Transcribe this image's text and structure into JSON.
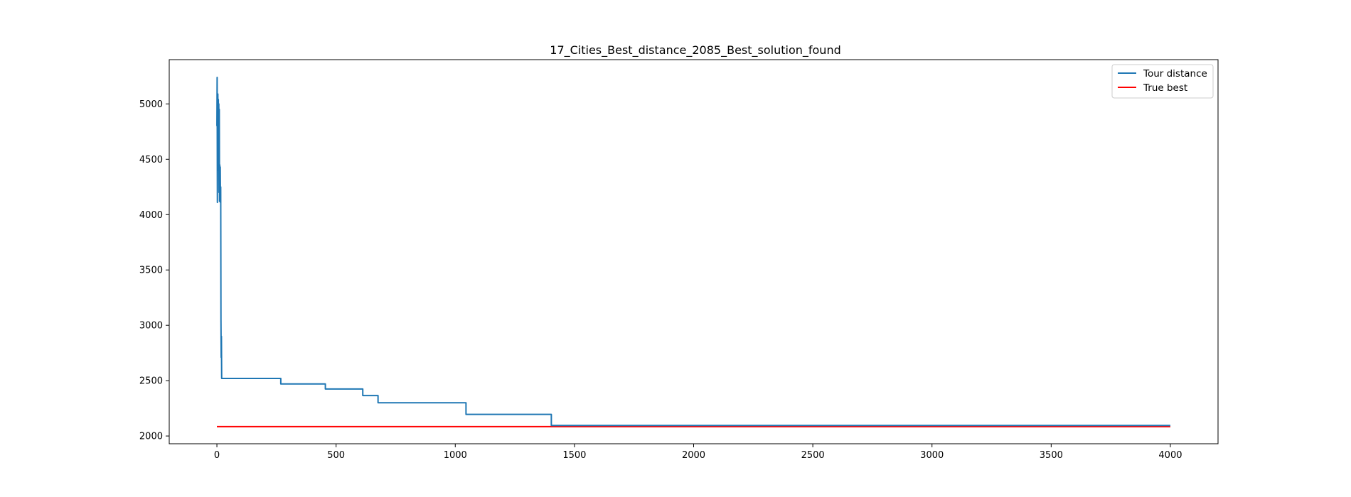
{
  "chart_data": {
    "type": "line",
    "title": "17_Cities_Best_distance_2085_Best_solution_found",
    "xlabel": "",
    "ylabel": "",
    "xlim": [
      -200,
      4200
    ],
    "ylim": [
      1930,
      5400
    ],
    "xticks": [
      0,
      500,
      1000,
      1500,
      2000,
      2500,
      3000,
      3500,
      4000
    ],
    "yticks": [
      2000,
      2500,
      3000,
      3500,
      4000,
      4500,
      5000
    ],
    "grid": false,
    "legend": "top-right",
    "series": [
      {
        "name": "Tour distance",
        "color": "#1f77b4",
        "points": [
          [
            0,
            4800
          ],
          [
            1,
            5240
          ],
          [
            2,
            4110
          ],
          [
            3,
            4600
          ],
          [
            4,
            5090
          ],
          [
            5,
            4400
          ],
          [
            6,
            5040
          ],
          [
            7,
            4700
          ],
          [
            8,
            5000
          ],
          [
            9,
            4200
          ],
          [
            10,
            4950
          ],
          [
            11,
            4120
          ],
          [
            12,
            4450
          ],
          [
            13,
            4380
          ],
          [
            14,
            4430
          ],
          [
            15,
            4110
          ],
          [
            16,
            4250
          ],
          [
            17,
            3050
          ],
          [
            18,
            2710
          ],
          [
            19,
            2900
          ],
          [
            20,
            2520
          ],
          [
            268,
            2520
          ],
          [
            268,
            2470
          ],
          [
            455,
            2470
          ],
          [
            455,
            2425
          ],
          [
            612,
            2425
          ],
          [
            612,
            2365
          ],
          [
            676,
            2365
          ],
          [
            676,
            2300
          ],
          [
            1045,
            2300
          ],
          [
            1045,
            2195
          ],
          [
            1403,
            2195
          ],
          [
            1403,
            2095
          ],
          [
            4000,
            2095
          ]
        ]
      },
      {
        "name": "True best",
        "color": "#ff0000",
        "points": [
          [
            0,
            2085
          ],
          [
            4000,
            2085
          ]
        ]
      }
    ]
  }
}
